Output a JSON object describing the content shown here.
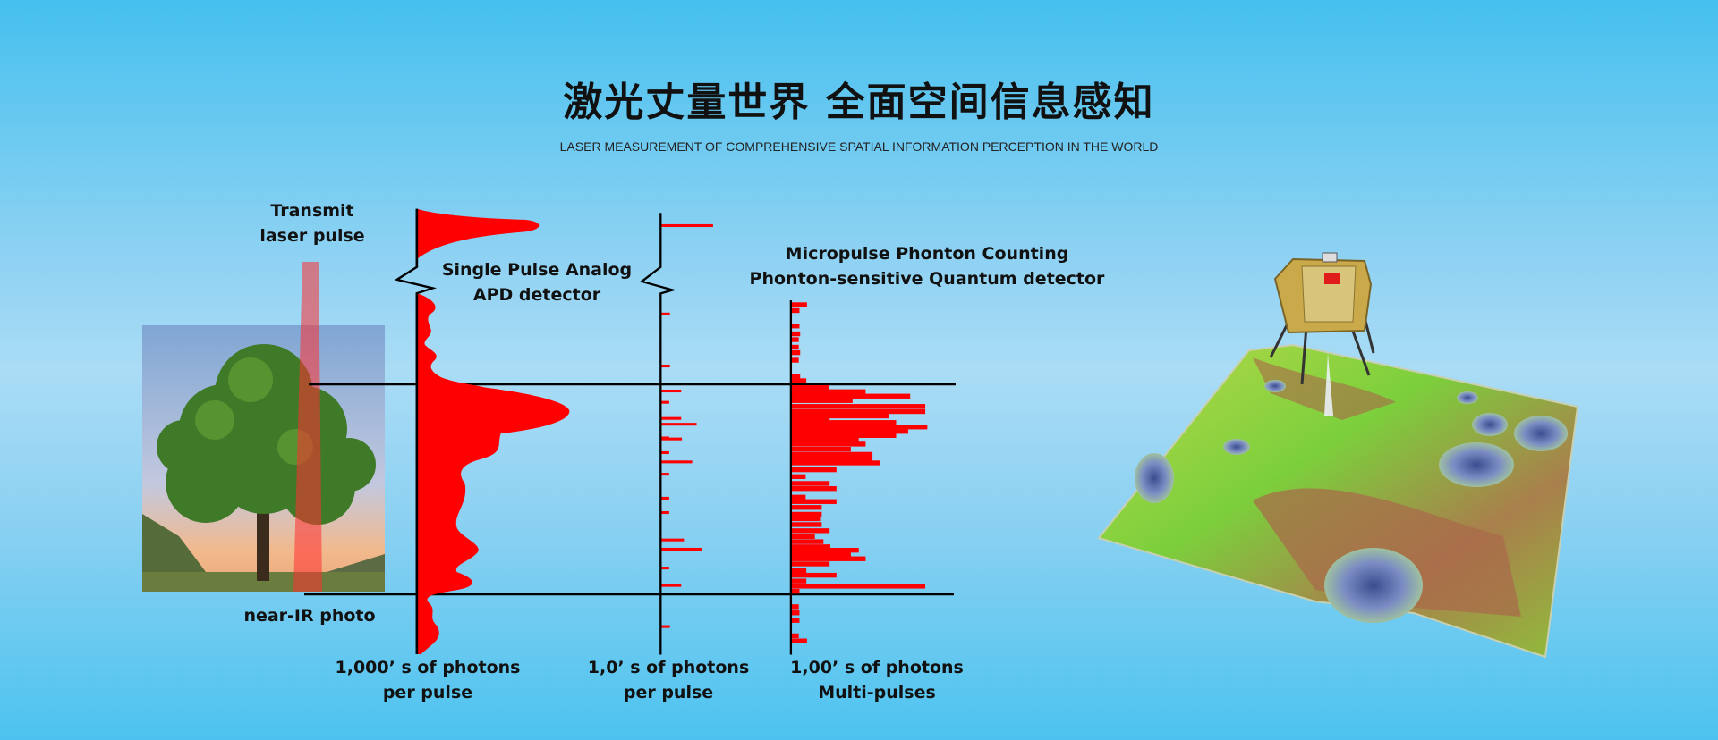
{
  "header": {
    "title": "激光丈量世界 全面空间信息感知",
    "subtitle": "LASER MEASUREMENT OF COMPREHENSIVE SPATIAL INFORMATION PERCEPTION IN THE WORLD"
  },
  "diagram": {
    "transmit_label": [
      "Transmit",
      "laser pulse"
    ],
    "photo_label": "near-IR photo",
    "apd_label": [
      "Single Pulse Analog",
      "APD detector"
    ],
    "quantum_label": [
      "Micropulse Phonton Counting",
      "Phonton-sensitive Quantum detector"
    ],
    "axis1_label": [
      "1,000’ s of photons",
      "per pulse"
    ],
    "axis2_label": [
      "1,0’ s of photons",
      "per pulse"
    ],
    "axis3_label": [
      "1,00’ s of photons",
      "Multi-pulses"
    ]
  },
  "colors": {
    "signal": "#ff0000",
    "axis": "#000000",
    "background": "#8fd2f3"
  }
}
